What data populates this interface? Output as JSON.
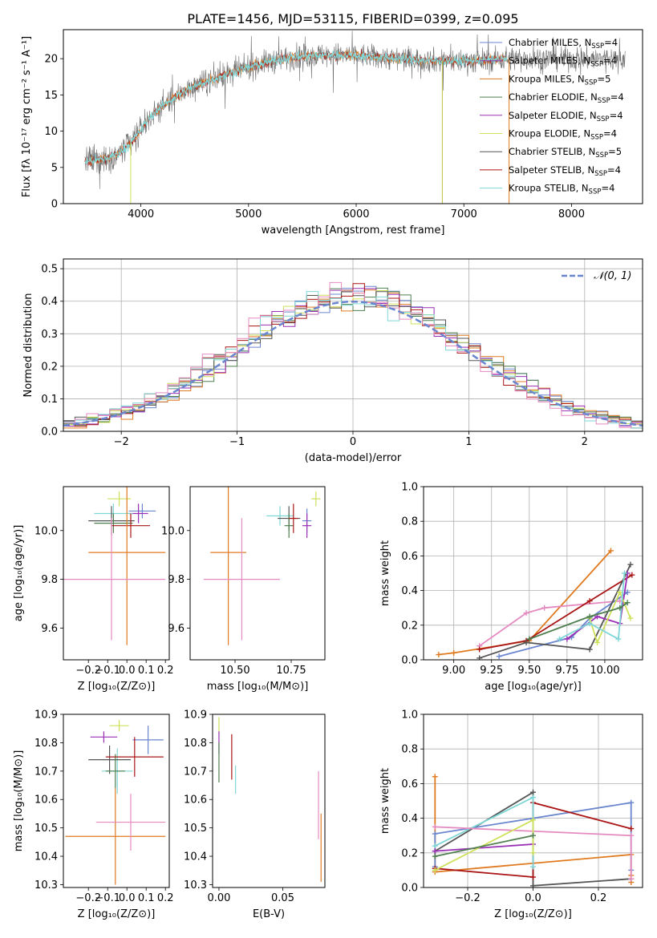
{
  "figure_title": "PLATE=1456, MJD=53115, FIBERID=0399, z=0.095",
  "colors": {
    "Chabrier MILES": "#6a86cf",
    "Salpeter MILES": "#8e3fb2",
    "Kroupa MILES": "#e07a20",
    "Chabrier ELODIE": "#4f7f4f",
    "Salpeter ELODIE": "#9a2fb5",
    "Kroupa ELODIE": "#cfe05a",
    "Chabrier STELIB": "#555555",
    "Salpeter STELIB": "#aa1515",
    "Kroupa STELIB": "#7fd6d6",
    "pink": "#e58ac0",
    "normal": "#6a86cf"
  },
  "chart_data": [
    {
      "id": "spectrum",
      "type": "line",
      "xlabel": "wavelength [Angstrom, rest frame]",
      "ylabel": "Flux [fλ 10⁻¹⁷ erg cm⁻² s⁻¹ A⁻¹]",
      "xlim": [
        3280,
        8660
      ],
      "ylim": [
        0,
        24
      ],
      "xticks": [
        4000,
        5000,
        6000,
        7000,
        8000
      ],
      "yticks": [
        0,
        5,
        10,
        15,
        20
      ],
      "legend_position": "right",
      "legend": [
        {
          "label": "Chabrier MILES, N",
          "sub": "SSP",
          "suffix": "=4",
          "color": "#6a86cf"
        },
        {
          "label": "Salpeter MILES, N",
          "sub": "SSP",
          "suffix": "=4",
          "color": "#8e3fb2"
        },
        {
          "label": "Kroupa MILES, N",
          "sub": "SSP",
          "suffix": "=5",
          "color": "#e07a20"
        },
        {
          "label": "Chabrier ELODIE, N",
          "sub": "SSP",
          "suffix": "=4",
          "color": "#4f7f4f"
        },
        {
          "label": "Salpeter ELODIE, N",
          "sub": "SSP",
          "suffix": "=4",
          "color": "#9a2fb5"
        },
        {
          "label": "Kroupa ELODIE, N",
          "sub": "SSP",
          "suffix": "=4",
          "color": "#cfe05a"
        },
        {
          "label": "Chabrier STELIB, N",
          "sub": "SSP",
          "suffix": "=5",
          "color": "#555555"
        },
        {
          "label": "Salpeter STELIB, N",
          "sub": "SSP",
          "suffix": "=4",
          "color": "#aa1515"
        },
        {
          "label": "Kroupa STELIB, N",
          "sub": "SSP",
          "suffix": "=4",
          "color": "#7fd6d6"
        }
      ],
      "continuum": [
        [
          3480,
          5.8
        ],
        [
          3600,
          6.0
        ],
        [
          3700,
          6.3
        ],
        [
          3800,
          7.0
        ],
        [
          3900,
          8.2
        ],
        [
          4000,
          10.2
        ],
        [
          4100,
          12.2
        ],
        [
          4200,
          13.5
        ],
        [
          4400,
          15.5
        ],
        [
          4600,
          16.8
        ],
        [
          4800,
          17.8
        ],
        [
          5000,
          18.8
        ],
        [
          5200,
          19.6
        ],
        [
          5400,
          20.2
        ],
        [
          5600,
          20.4
        ],
        [
          5800,
          20.5
        ],
        [
          6000,
          20.4
        ],
        [
          6200,
          20.2
        ],
        [
          6400,
          20.0
        ],
        [
          6600,
          19.8
        ],
        [
          6800,
          19.7
        ],
        [
          7000,
          19.7
        ],
        [
          7200,
          19.8
        ],
        [
          7400,
          20.0
        ]
      ],
      "model_range": [
        3480,
        7400
      ],
      "data_range": [
        3480,
        8500
      ],
      "spikes": [
        {
          "x": 3905,
          "color": "#cfe05a"
        },
        {
          "x": 6800,
          "color": "#bfbf3f"
        },
        {
          "x": 7420,
          "color": "#e07a20"
        }
      ]
    },
    {
      "id": "residuals",
      "type": "step-histogram",
      "xlabel": "(data-model)/error",
      "ylabel": "Normed distribution",
      "xlim": [
        -2.5,
        2.5
      ],
      "ylim": [
        0,
        0.53
      ],
      "xticks": [
        -2,
        -1,
        0,
        1,
        2
      ],
      "yticks": [
        0.0,
        0.1,
        0.2,
        0.3,
        0.4,
        0.5
      ],
      "grid": true,
      "bin_width": 0.1,
      "legend": [
        {
          "label": "𝒩(0, 1)",
          "style": "dashed",
          "color": "#6a86cf"
        }
      ],
      "legend_position": "top-right",
      "series_colors": [
        "#6a86cf",
        "#e07a20",
        "#4f7f4f",
        "#9a2fb5",
        "#cfe05a",
        "#555555",
        "#aa1515",
        "#7fd6d6",
        "#e58ac0"
      ]
    },
    {
      "id": "age-vs-Z",
      "type": "scatter-errorbar",
      "xlabel": "Z [log₁₀(Z/Z⊙)]",
      "ylabel": "age  [log₁₀(age/yr)]",
      "xlim": [
        -0.33,
        0.22
      ],
      "ylim": [
        9.47,
        10.18
      ],
      "xticks": [
        -0.2,
        -0.1,
        0.0,
        0.1,
        0.2
      ],
      "yticks": [
        9.6,
        9.8,
        10.0
      ],
      "points": [
        {
          "x": -0.04,
          "y": 10.13,
          "xerr": 0.06,
          "yerr": 0.03,
          "color": "#cfe05a"
        },
        {
          "x": 0.08,
          "y": 10.08,
          "xerr": 0.07,
          "yerr": 0.03,
          "color": "#6a86cf"
        },
        {
          "x": 0.06,
          "y": 10.07,
          "xerr": 0.05,
          "yerr": 0.04,
          "color": "#9a2fb5"
        },
        {
          "x": -0.07,
          "y": 10.07,
          "xerr": 0.1,
          "yerr": 0.04,
          "color": "#7fd6d6"
        },
        {
          "x": -0.08,
          "y": 10.04,
          "xerr": 0.12,
          "yerr": 0.06,
          "color": "#555555"
        },
        {
          "x": -0.07,
          "y": 10.03,
          "xerr": 0.1,
          "yerr": 0.04,
          "color": "#4f7f4f"
        },
        {
          "x": 0.02,
          "y": 10.02,
          "xerr": 0.1,
          "yerr": 0.05,
          "color": "#aa1515"
        },
        {
          "x": 0.0,
          "y": 9.91,
          "xerr": 0.2,
          "yerr": 0.38,
          "color": "#e07a20"
        },
        {
          "x": -0.08,
          "y": 9.8,
          "xerr": 0.28,
          "yerr": 0.25,
          "color": "#e58ac0"
        }
      ]
    },
    {
      "id": "age-vs-mass",
      "type": "scatter-errorbar",
      "xlabel": "mass [log₁₀(M/M⊙)]",
      "ylabel": "",
      "xlim": [
        10.3,
        10.9
      ],
      "ylim": [
        9.47,
        10.18
      ],
      "xticks": [
        10.5,
        10.75
      ],
      "yticks": [
        9.6,
        9.8,
        10.0
      ],
      "points": [
        {
          "x": 10.86,
          "y": 10.13,
          "xerr": 0.02,
          "yerr": 0.03,
          "color": "#cfe05a"
        },
        {
          "x": 10.82,
          "y": 10.04,
          "xerr": 0.02,
          "yerr": 0.05,
          "color": "#6a86cf"
        },
        {
          "x": 10.82,
          "y": 10.02,
          "xerr": 0.02,
          "yerr": 0.05,
          "color": "#9a2fb5"
        },
        {
          "x": 10.7,
          "y": 10.06,
          "xerr": 0.06,
          "yerr": 0.04,
          "color": "#7fd6d6"
        },
        {
          "x": 10.74,
          "y": 10.05,
          "xerr": 0.05,
          "yerr": 0.05,
          "color": "#555555"
        },
        {
          "x": 10.74,
          "y": 10.02,
          "xerr": 0.02,
          "yerr": 0.05,
          "color": "#4f7f4f"
        },
        {
          "x": 10.76,
          "y": 10.05,
          "xerr": 0.02,
          "yerr": 0.06,
          "color": "#aa1515"
        },
        {
          "x": 10.47,
          "y": 9.91,
          "xerr": 0.08,
          "yerr": 0.38,
          "color": "#e07a20"
        },
        {
          "x": 10.53,
          "y": 9.8,
          "xerr": 0.17,
          "yerr": 0.25,
          "color": "#e58ac0"
        }
      ]
    },
    {
      "id": "mass-weight-vs-age",
      "type": "line",
      "xlabel": "age  [log₁₀(age/yr)]",
      "ylabel": "mass weight",
      "xlim": [
        8.8,
        10.25
      ],
      "ylim": [
        0,
        1.0
      ],
      "xticks": [
        9.0,
        9.25,
        9.5,
        9.75,
        10.0
      ],
      "yticks": [
        0.0,
        0.2,
        0.4,
        0.6,
        0.8,
        1.0
      ],
      "grid": true,
      "series": [
        {
          "color": "#e07a20",
          "x": [
            8.9,
            9.0,
            9.5,
            10.04
          ],
          "y": [
            0.03,
            0.04,
            0.11,
            0.63
          ]
        },
        {
          "color": "#e58ac0",
          "x": [
            9.17,
            9.48,
            9.6,
            10.1
          ],
          "y": [
            0.08,
            0.27,
            0.3,
            0.34
          ]
        },
        {
          "color": "#aa1515",
          "x": [
            9.17,
            9.48,
            9.9,
            10.18
          ],
          "y": [
            0.06,
            0.11,
            0.34,
            0.49
          ]
        },
        {
          "color": "#6a86cf",
          "x": [
            9.3,
            9.78,
            9.9,
            10.15
          ],
          "y": [
            0.02,
            0.13,
            0.24,
            0.39
          ]
        },
        {
          "color": "#555555",
          "x": [
            9.17,
            9.48,
            9.9,
            10.17
          ],
          "y": [
            0.01,
            0.1,
            0.06,
            0.55
          ]
        },
        {
          "color": "#9a2fb5",
          "x": [
            9.75,
            9.95,
            10.1,
            10.15
          ],
          "y": [
            0.12,
            0.25,
            0.21,
            0.5
          ]
        },
        {
          "color": "#cfe05a",
          "x": [
            9.9,
            9.95,
            10.1,
            10.17
          ],
          "y": [
            0.24,
            0.1,
            0.39,
            0.24
          ]
        },
        {
          "color": "#7fd6d6",
          "x": [
            9.7,
            9.9,
            10.09,
            10.13
          ],
          "y": [
            0.12,
            0.21,
            0.12,
            0.5
          ]
        },
        {
          "color": "#4f7f4f",
          "x": [
            9.5,
            9.9,
            10.1,
            10.15
          ],
          "y": [
            0.12,
            0.25,
            0.3,
            0.33
          ]
        }
      ]
    },
    {
      "id": "mass-vs-Z",
      "type": "scatter-errorbar",
      "xlabel": "Z [log₁₀(Z/Z⊙)]",
      "ylabel": "mass [log₁₀(M/M⊙)]",
      "xlim": [
        -0.33,
        0.22
      ],
      "ylim": [
        10.29,
        10.9
      ],
      "xticks": [
        -0.2,
        -0.1,
        0.0,
        0.1,
        0.2
      ],
      "yticks": [
        10.3,
        10.4,
        10.5,
        10.6,
        10.7,
        10.8,
        10.9
      ],
      "points": [
        {
          "x": -0.04,
          "y": 10.86,
          "xerr": 0.05,
          "yerr": 0.02,
          "color": "#cfe05a"
        },
        {
          "x": 0.11,
          "y": 10.81,
          "xerr": 0.08,
          "yerr": 0.05,
          "color": "#6a86cf"
        },
        {
          "x": -0.12,
          "y": 10.82,
          "xerr": 0.07,
          "yerr": 0.02,
          "color": "#9a2fb5"
        },
        {
          "x": -0.05,
          "y": 10.7,
          "xerr": 0.08,
          "yerr": 0.08,
          "color": "#7fd6d6"
        },
        {
          "x": -0.09,
          "y": 10.74,
          "xerr": 0.11,
          "yerr": 0.05,
          "color": "#555555"
        },
        {
          "x": -0.06,
          "y": 10.7,
          "xerr": 0.05,
          "yerr": 0.06,
          "color": "#4f7f4f"
        },
        {
          "x": 0.04,
          "y": 10.75,
          "xerr": 0.15,
          "yerr": 0.07,
          "color": "#aa1515"
        },
        {
          "x": -0.06,
          "y": 10.47,
          "xerr": 0.26,
          "yerr": 0.17,
          "color": "#e07a20"
        },
        {
          "x": 0.02,
          "y": 10.52,
          "xerr": 0.18,
          "yerr": 0.1,
          "color": "#e58ac0"
        }
      ]
    },
    {
      "id": "mass-vs-ebv",
      "type": "scatter-errorbar",
      "xlabel": "E(B-V)",
      "ylabel": "",
      "xlim": [
        -0.005,
        0.083
      ],
      "ylim": [
        10.29,
        10.9
      ],
      "xticks": [
        0.0,
        0.05
      ],
      "yticks": [
        10.3,
        10.4,
        10.5,
        10.6,
        10.7,
        10.8,
        10.9
      ],
      "points": [
        {
          "x": 0.0,
          "y": 10.86,
          "xerr": 0.0003,
          "yerr": 0.03,
          "color": "#cfe05a"
        },
        {
          "x": 0.0,
          "y": 10.8,
          "xerr": 0.0003,
          "yerr": 0.04,
          "color": "#9a2fb5"
        },
        {
          "x": 0.0,
          "y": 10.73,
          "xerr": 0.0003,
          "yerr": 0.07,
          "color": "#4f7f4f"
        },
        {
          "x": 0.01,
          "y": 10.75,
          "xerr": 0.0003,
          "yerr": 0.08,
          "color": "#aa1515"
        },
        {
          "x": 0.013,
          "y": 10.67,
          "xerr": 0.0003,
          "yerr": 0.05,
          "color": "#7fd6d6"
        },
        {
          "x": 0.078,
          "y": 10.58,
          "xerr": 0.0003,
          "yerr": 0.12,
          "color": "#e58ac0"
        },
        {
          "x": 0.08,
          "y": 10.43,
          "xerr": 0.0003,
          "yerr": 0.12,
          "color": "#e07a20"
        }
      ]
    },
    {
      "id": "mass-weight-vs-Z",
      "type": "line",
      "xlabel": "Z [log₁₀(Z/Z⊙)]",
      "ylabel": "mass weight",
      "xlim": [
        -0.335,
        0.335
      ],
      "ylim": [
        0,
        1.0
      ],
      "xticks": [
        -0.2,
        0.0,
        0.2
      ],
      "yticks": [
        0.0,
        0.2,
        0.4,
        0.6,
        0.8,
        1.0
      ],
      "grid": true,
      "series": [
        {
          "color": "#e07a20",
          "x": [
            -0.3,
            -0.3,
            0.3,
            0.3,
            0.3
          ],
          "y": [
            0.64,
            0.09,
            0.19,
            0.07,
            0.03
          ]
        },
        {
          "color": "#555555",
          "x": [
            -0.3,
            0.0,
            0.0,
            0.3
          ],
          "y": [
            0.21,
            0.55,
            0.01,
            0.05
          ]
        },
        {
          "color": "#6a86cf",
          "x": [
            -0.3,
            -0.3,
            0.0,
            0.3,
            0.3
          ],
          "y": [
            0.12,
            0.31,
            0.4,
            0.49,
            0.1
          ]
        },
        {
          "color": "#aa1515",
          "x": [
            -0.3,
            0.0,
            0.0,
            0.3
          ],
          "y": [
            0.11,
            0.06,
            0.49,
            0.34
          ]
        },
        {
          "color": "#7fd6d6",
          "x": [
            -0.3,
            0.0,
            0.0
          ],
          "y": [
            0.24,
            0.52,
            0.12
          ]
        },
        {
          "color": "#e58ac0",
          "x": [
            -0.3,
            0.3,
            0.3
          ],
          "y": [
            0.35,
            0.3,
            0.05
          ]
        },
        {
          "color": "#9a2fb5",
          "x": [
            -0.3,
            0.0
          ],
          "y": [
            0.21,
            0.25
          ]
        },
        {
          "color": "#cfe05a",
          "x": [
            -0.3,
            0.0,
            0.0
          ],
          "y": [
            0.1,
            0.39,
            0.2
          ]
        },
        {
          "color": "#4f7f4f",
          "x": [
            -0.3,
            0.0
          ],
          "y": [
            0.18,
            0.3
          ]
        }
      ]
    }
  ]
}
